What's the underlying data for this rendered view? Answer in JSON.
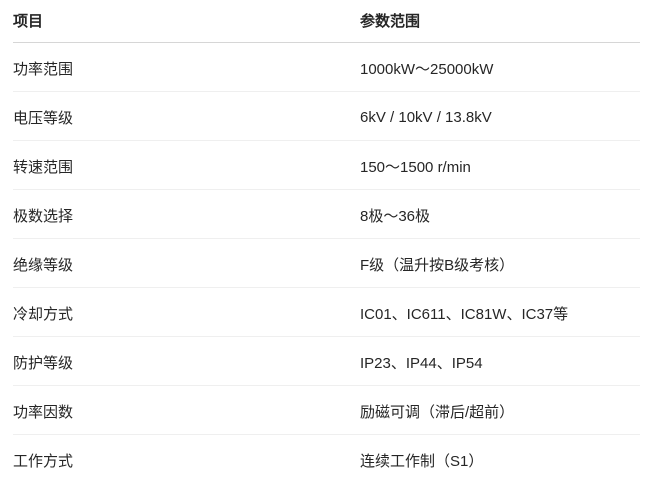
{
  "table": {
    "columns": [
      {
        "key": "item",
        "label": "项目"
      },
      {
        "key": "range",
        "label": "参数范围"
      }
    ],
    "rows": [
      {
        "item": "功率范围",
        "range": "1000kW～25000kW"
      },
      {
        "item": "电压等级",
        "range": "6kV / 10kV / 13.8kV"
      },
      {
        "item": "转速范围",
        "range": "150～1500 r/min"
      },
      {
        "item": "极数选择",
        "range": "8极～36极"
      },
      {
        "item": "绝缘等级",
        "range": "F级（温升按B级考核）"
      },
      {
        "item": "冷却方式",
        "range": "IC01、IC611、IC81W、IC37等"
      },
      {
        "item": "防护等级",
        "range": "IP23、IP44、IP54"
      },
      {
        "item": "功率因数",
        "range": "励磁可调（滞后/超前）"
      },
      {
        "item": "工作方式",
        "range": "连续工作制（S1）"
      }
    ],
    "colors": {
      "background": "#ffffff",
      "text": "#262626",
      "header_border": "#d6d6d6",
      "row_border": "#efefef"
    }
  }
}
